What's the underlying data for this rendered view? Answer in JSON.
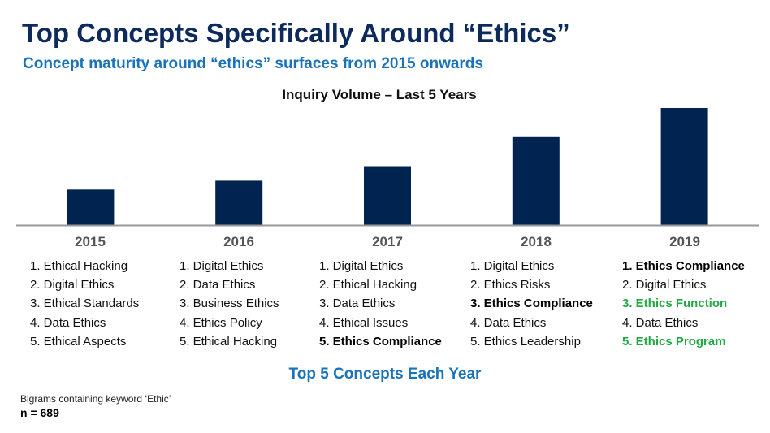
{
  "header": {
    "title": "Top Concepts Specifically Around “Ethics”",
    "subtitle": "Concept maturity around “ethics” surfaces from 2015 onwards"
  },
  "chart_data": {
    "type": "bar",
    "title": "Inquiry Volume – Last 5 Years",
    "categories": [
      "2015",
      "2016",
      "2017",
      "2018",
      "2019"
    ],
    "values": [
      44,
      55,
      73,
      109,
      145
    ],
    "ylim": [
      0,
      145
    ],
    "xlabel": "",
    "ylabel": "",
    "grid": false,
    "bar_color": "#00244f"
  },
  "top_concepts": [
    {
      "year": "2015",
      "items": [
        {
          "text": "1. Ethical Hacking",
          "style": "normal"
        },
        {
          "text": "2. Digital Ethics",
          "style": "normal"
        },
        {
          "text": "3. Ethical Standards",
          "style": "normal"
        },
        {
          "text": "4. Data Ethics",
          "style": "normal"
        },
        {
          "text": "5. Ethical Aspects",
          "style": "normal"
        }
      ]
    },
    {
      "year": "2016",
      "items": [
        {
          "text": "1. Digital Ethics",
          "style": "normal"
        },
        {
          "text": "2. Data Ethics",
          "style": "normal"
        },
        {
          "text": "3. Business Ethics",
          "style": "normal"
        },
        {
          "text": "4. Ethics Policy",
          "style": "normal"
        },
        {
          "text": "5. Ethical Hacking",
          "style": "normal"
        }
      ]
    },
    {
      "year": "2017",
      "items": [
        {
          "text": "1. Digital Ethics",
          "style": "normal"
        },
        {
          "text": "2. Ethical Hacking",
          "style": "normal"
        },
        {
          "text": "3. Data Ethics",
          "style": "normal"
        },
        {
          "text": "4. Ethical Issues",
          "style": "normal"
        },
        {
          "text": "5. Ethics Compliance",
          "style": "bold"
        }
      ]
    },
    {
      "year": "2018",
      "items": [
        {
          "text": "1. Digital Ethics",
          "style": "normal"
        },
        {
          "text": "2. Ethics Risks",
          "style": "normal"
        },
        {
          "text": "3. Ethics Compliance",
          "style": "bold"
        },
        {
          "text": "4. Data Ethics",
          "style": "normal"
        },
        {
          "text": "5. Ethics Leadership",
          "style": "normal"
        }
      ]
    },
    {
      "year": "2019",
      "items": [
        {
          "text": "1. Ethics Compliance",
          "style": "bold"
        },
        {
          "text": "2. Digital Ethics",
          "style": "normal"
        },
        {
          "text": "3. Ethics Function",
          "style": "green"
        },
        {
          "text": "4. Data Ethics",
          "style": "normal"
        },
        {
          "text": "5. Ethics Program",
          "style": "green"
        }
      ]
    }
  ],
  "colors": {
    "highlight_green": "#22a845",
    "accent_blue": "#1a73b8",
    "title_navy": "#0d2a5c"
  },
  "footer": {
    "section_title": "Top 5 Concepts Each Year",
    "note": "Bigrams containing keyword ‘Ethic’",
    "n_label": "n = 689"
  }
}
